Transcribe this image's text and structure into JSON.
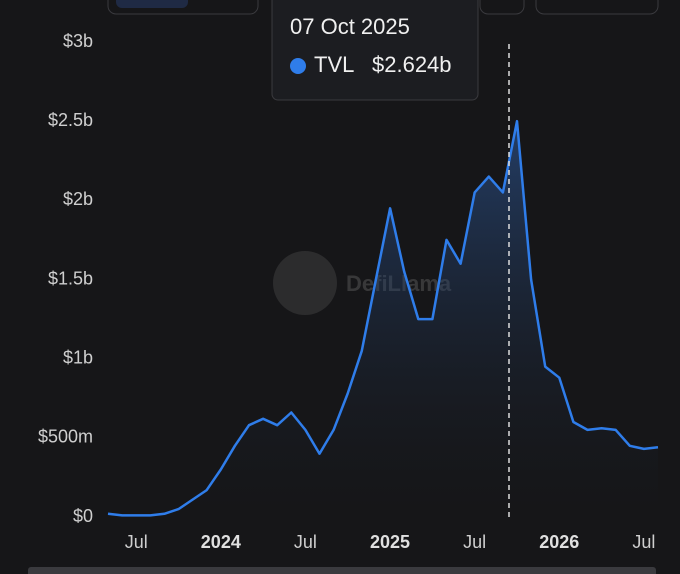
{
  "chart_data": {
    "type": "area",
    "x": [
      "2023-05",
      "2023-06",
      "2023-07",
      "2023-08",
      "2023-09",
      "2023-10",
      "2023-11",
      "2023-12",
      "2024-01",
      "2024-02",
      "2024-03",
      "2024-04",
      "2024-05",
      "2024-06",
      "2024-07",
      "2024-08",
      "2024-09",
      "2024-10",
      "2024-11",
      "2024-12",
      "2025-01",
      "2025-02",
      "2025-03",
      "2025-04",
      "2025-05",
      "2025-06",
      "2025-07",
      "2025-08",
      "2025-09",
      "2025-10",
      "2025-11",
      "2025-12",
      "2026-01",
      "2026-02",
      "2026-03",
      "2026-04",
      "2026-05",
      "2026-06",
      "2026-07",
      "2026-08"
    ],
    "series": [
      {
        "name": "TVL",
        "color": "#2f7dea",
        "values": [
          0.02,
          0.01,
          0.01,
          0.01,
          0.02,
          0.05,
          0.11,
          0.17,
          0.3,
          0.45,
          0.58,
          0.62,
          0.58,
          0.66,
          0.55,
          0.4,
          0.55,
          0.78,
          1.05,
          1.5,
          1.95,
          1.55,
          1.25,
          1.25,
          1.75,
          1.6,
          2.05,
          2.15,
          2.05,
          2.5,
          1.5,
          0.95,
          0.88,
          0.6,
          0.55,
          0.56,
          0.55,
          0.45,
          0.43,
          0.44
        ]
      }
    ],
    "xlim": [
      "2023-05",
      "2026-08"
    ],
    "xticks": [
      {
        "value": "2023-07",
        "label": "Jul"
      },
      {
        "value": "2024-01",
        "label": "2024"
      },
      {
        "value": "2024-07",
        "label": "Jul"
      },
      {
        "value": "2025-01",
        "label": "2025"
      },
      {
        "value": "2025-07",
        "label": "Jul"
      },
      {
        "value": "2026-01",
        "label": "2026"
      },
      {
        "value": "2026-07",
        "label": "Jul"
      }
    ],
    "ylim": [
      0,
      3
    ],
    "yticks": [
      {
        "value": 0,
        "label": "$0"
      },
      {
        "value": 0.5,
        "label": "$500m"
      },
      {
        "value": 1,
        "label": "$1b"
      },
      {
        "value": 1.5,
        "label": "$1.5b"
      },
      {
        "value": 2,
        "label": "$2b"
      },
      {
        "value": 2.5,
        "label": "$2.5b"
      },
      {
        "value": 3,
        "label": "$3b"
      }
    ],
    "grid": false,
    "watermark": "DefiLlama",
    "tooltip": {
      "date": "07 Oct 2025",
      "value": 2.624,
      "value_label": "$2.624b"
    }
  }
}
